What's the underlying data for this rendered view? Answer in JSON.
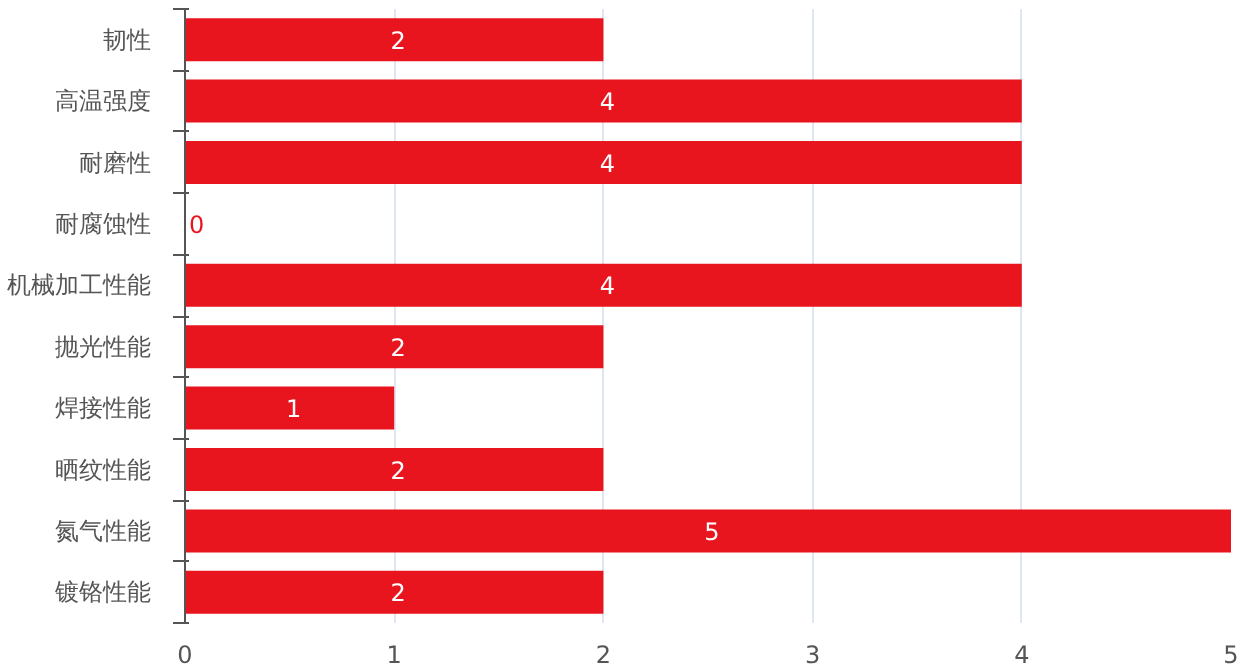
{
  "chart_data": {
    "type": "bar",
    "orientation": "horizontal",
    "categories": [
      "韧性",
      "高温强度",
      "耐磨性",
      "耐腐蚀性",
      "机械加工性能",
      "抛光性能",
      "焊接性能",
      "晒纹性能",
      "氮气性能",
      "镀铬性能"
    ],
    "values": [
      2,
      4,
      4,
      0,
      4,
      2,
      1,
      2,
      5,
      2
    ],
    "color": "#e8151f",
    "xlim": [
      0,
      5
    ],
    "xticks": [
      0,
      1,
      2,
      3,
      4,
      5
    ],
    "grid": "x",
    "data_labels": true
  }
}
